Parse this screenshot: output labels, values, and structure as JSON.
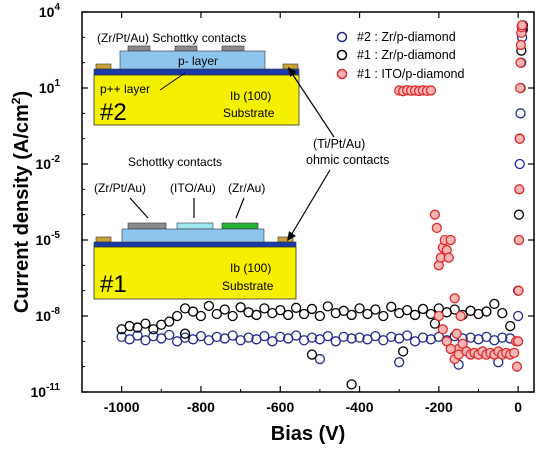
{
  "chart_data": {
    "type": "scatter",
    "title": "",
    "xlabel": "Bias (V)",
    "ylabel": "Current density (A/cm",
    "ylabel_sup": "2",
    "ylabel_close": ")",
    "xlim": [
      -1100,
      40
    ],
    "ylim": [
      1e-11,
      10000
    ],
    "yscale": "log",
    "x_ticks": [
      -1000,
      -800,
      -600,
      -400,
      -200,
      0
    ],
    "x_tick_labels": [
      "-1000",
      "-800",
      "-600",
      "-400",
      "-200",
      "0"
    ],
    "y_ticks": [
      1e-11,
      1e-08,
      1e-05,
      0.01,
      10,
      10000
    ],
    "y_tick_labels": [
      {
        "base": "10",
        "exp": "-11"
      },
      {
        "base": "10",
        "exp": "-8"
      },
      {
        "base": "10",
        "exp": "-5"
      },
      {
        "base": "10",
        "exp": "-2"
      },
      {
        "base": "10",
        "exp": "1"
      },
      {
        "base": "10",
        "exp": "4"
      }
    ],
    "grid": false,
    "legend_position": "top-right",
    "series": [
      {
        "name": "#2 : Zr/p-diamond",
        "marker": "open-circle",
        "color": "#1f2a8c",
        "points": [
          [
            -1000,
            1.5e-09
          ],
          [
            -980,
            1.2e-09
          ],
          [
            -960,
            1.7e-09
          ],
          [
            -940,
            1.1e-09
          ],
          [
            -920,
            1.6e-09
          ],
          [
            -900,
            1.3e-09
          ],
          [
            -880,
            1.8e-09
          ],
          [
            -860,
            1e-09
          ],
          [
            -840,
            1.4e-09
          ],
          [
            -820,
            1.2e-09
          ],
          [
            -800,
            1.6e-09
          ],
          [
            -780,
            1.1e-09
          ],
          [
            -760,
            1.5e-09
          ],
          [
            -740,
            1.3e-09
          ],
          [
            -720,
            1.7e-09
          ],
          [
            -700,
            1.1e-09
          ],
          [
            -680,
            1.4e-09
          ],
          [
            -660,
            1.2e-09
          ],
          [
            -640,
            1.6e-09
          ],
          [
            -620,
            1e-09
          ],
          [
            -600,
            1.5e-09
          ],
          [
            -580,
            1.3e-09
          ],
          [
            -560,
            1.7e-09
          ],
          [
            -540,
            1.1e-09
          ],
          [
            -520,
            1.4e-09
          ],
          [
            -500,
            1.2e-09
          ],
          [
            -480,
            1.6e-09
          ],
          [
            -460,
            1e-09
          ],
          [
            -440,
            1.5e-09
          ],
          [
            -420,
            1.3e-09
          ],
          [
            -400,
            1.4e-09
          ],
          [
            -380,
            1.2e-09
          ],
          [
            -360,
            1.6e-09
          ],
          [
            -340,
            1.1e-09
          ],
          [
            -320,
            1.5e-09
          ],
          [
            -300,
            1.3e-09
          ],
          [
            -280,
            1.7e-09
          ],
          [
            -260,
            1e-09
          ],
          [
            -240,
            1.4e-09
          ],
          [
            -220,
            1.2e-09
          ],
          [
            -200,
            1.5e-09
          ],
          [
            -180,
            1.1e-09
          ],
          [
            -160,
            1.6e-09
          ],
          [
            -140,
            1.3e-09
          ],
          [
            -120,
            1.4e-09
          ],
          [
            -100,
            1.2e-09
          ],
          [
            -80,
            1.5e-09
          ],
          [
            -60,
            1.1e-09
          ],
          [
            -40,
            1.4e-09
          ],
          [
            -20,
            1.3e-09
          ],
          [
            -500,
            2e-10
          ],
          [
            -300,
            1.5e-10
          ],
          [
            -150,
            1.2e-10
          ],
          [
            -50,
            1.5e-10
          ],
          [
            0,
            1e-08
          ],
          [
            2,
            1e-05
          ],
          [
            4,
            0.01
          ],
          [
            6,
            1
          ],
          [
            8,
            100
          ],
          [
            10,
            1000
          ],
          [
            12,
            2000
          ]
        ]
      },
      {
        "name": "#1 : Zr/p-diamond",
        "marker": "open-circle",
        "color": "#000000",
        "points": [
          [
            -1000,
            3e-09
          ],
          [
            -980,
            4e-09
          ],
          [
            -960,
            3.5e-09
          ],
          [
            -940,
            5e-09
          ],
          [
            -920,
            3e-09
          ],
          [
            -900,
            4.5e-09
          ],
          [
            -880,
            6e-09
          ],
          [
            -860,
            1e-08
          ],
          [
            -840,
            2e-08
          ],
          [
            -820,
            1.5e-08
          ],
          [
            -800,
            1e-08
          ],
          [
            -780,
            2.5e-08
          ],
          [
            -760,
            1.2e-08
          ],
          [
            -740,
            1.8e-08
          ],
          [
            -720,
            1e-08
          ],
          [
            -700,
            2.2e-08
          ],
          [
            -680,
            1.4e-08
          ],
          [
            -660,
            1.1e-08
          ],
          [
            -640,
            2e-08
          ],
          [
            -620,
            1.3e-08
          ],
          [
            -600,
            1.7e-08
          ],
          [
            -580,
            1.1e-08
          ],
          [
            -560,
            2.1e-08
          ],
          [
            -540,
            1.2e-08
          ],
          [
            -520,
            1.9e-08
          ],
          [
            -500,
            1e-08
          ],
          [
            -480,
            2.4e-08
          ],
          [
            -460,
            1.3e-08
          ],
          [
            -440,
            1.6e-08
          ],
          [
            -420,
            1.1e-08
          ],
          [
            -400,
            2e-08
          ],
          [
            -380,
            1.2e-08
          ],
          [
            -360,
            1.8e-08
          ],
          [
            -340,
            1e-08
          ],
          [
            -320,
            2.3e-08
          ],
          [
            -300,
            1.3e-08
          ],
          [
            -280,
            1.7e-08
          ],
          [
            -260,
            1.1e-08
          ],
          [
            -240,
            1.9e-08
          ],
          [
            -220,
            1.2e-08
          ],
          [
            -200,
            2e-08
          ],
          [
            -180,
            1.4e-08
          ],
          [
            -160,
            1.8e-08
          ],
          [
            -140,
            1.1e-08
          ],
          [
            -120,
            1.6e-08
          ],
          [
            -100,
            1.2e-08
          ],
          [
            -80,
            1.5e-08
          ],
          [
            -60,
            3e-08
          ],
          [
            -40,
            1.3e-08
          ],
          [
            -20,
            4e-09
          ],
          [
            -840,
            2e-09
          ],
          [
            -520,
            3e-10
          ],
          [
            -420,
            2e-11
          ],
          [
            -290,
            4e-10
          ],
          [
            -210,
            5e-09
          ],
          [
            0,
            1e-07
          ],
          [
            2,
            0.0001
          ],
          [
            4,
            0.1
          ],
          [
            6,
            10
          ],
          [
            8,
            300
          ],
          [
            10,
            2000
          ],
          [
            12,
            3000
          ]
        ]
      },
      {
        "name": "#1 : ITO/p-diamond",
        "marker": "open-circle",
        "color": "#e02a2a",
        "points": [
          [
            -300,
            8
          ],
          [
            -290,
            7.5
          ],
          [
            -280,
            8.2
          ],
          [
            -270,
            7.8
          ],
          [
            -260,
            8
          ],
          [
            -250,
            7.6
          ],
          [
            -240,
            8.1
          ],
          [
            -230,
            7.7
          ],
          [
            -220,
            8
          ],
          [
            -210,
            0.0001
          ],
          [
            -205,
            3e-05
          ],
          [
            -200,
            1e-06
          ],
          [
            -195,
            2e-06
          ],
          [
            -190,
            5e-06
          ],
          [
            -185,
            1e-05
          ],
          [
            -180,
            4e-06
          ],
          [
            -175,
            2e-06
          ],
          [
            -170,
            1e-05
          ],
          [
            -160,
            5e-08
          ],
          [
            -155,
            2e-09
          ],
          [
            -150,
            5e-10
          ],
          [
            -145,
            1e-08
          ],
          [
            -200,
            1e-08
          ],
          [
            -190,
            3e-09
          ],
          [
            -180,
            1e-09
          ],
          [
            -170,
            5e-10
          ],
          [
            -160,
            2e-10
          ],
          [
            -150,
            3e-10
          ],
          [
            -140,
            8e-10
          ],
          [
            -130,
            4e-10
          ],
          [
            -120,
            3e-10
          ],
          [
            -110,
            3.5e-10
          ],
          [
            -100,
            3e-10
          ],
          [
            -90,
            4e-10
          ],
          [
            -80,
            3e-10
          ],
          [
            -70,
            3.5e-10
          ],
          [
            -60,
            3e-10
          ],
          [
            -50,
            4e-10
          ],
          [
            -40,
            3e-10
          ],
          [
            -30,
            3.5e-10
          ],
          [
            -20,
            3e-10
          ],
          [
            -10,
            3.5e-10
          ],
          [
            -5,
            1e-09
          ],
          [
            -3,
            1e-10
          ],
          [
            0,
            1e-09
          ],
          [
            1,
            1e-07
          ],
          [
            2,
            1e-05
          ],
          [
            3,
            0.001
          ],
          [
            4,
            0.1
          ],
          [
            5,
            10
          ],
          [
            6,
            100
          ],
          [
            7,
            500
          ],
          [
            8,
            1500
          ],
          [
            9,
            2500
          ],
          [
            10,
            3000
          ]
        ]
      }
    ]
  },
  "inset2": {
    "contacts_label": "(Zr/Pt/Au) Schottky contacts",
    "p_layer_label": "p- layer",
    "ppp_layer_label": "p++ layer",
    "number_label": "#2",
    "substrate_line1": "Ib (100)",
    "substrate_line2": "Substrate"
  },
  "inset1": {
    "contacts_label": "Schottky contacts",
    "contact_a_label": "(Zr/Pt/Au)",
    "contact_b_label": "(ITO/Au)",
    "contact_c_label": "(Zr/Au)",
    "number_label": "#1",
    "substrate_line1": "Ib (100)",
    "substrate_line2": "Substrate"
  },
  "annotation": {
    "line1": "(Ti/Pt/Au)",
    "line2": "ohmic contacts"
  },
  "colors": {
    "substrate": "#f5f000",
    "p_layer": "#8ec5ee",
    "ppp_layer": "#1a3aa8",
    "contact_gray": "#8a8a8a",
    "contact_ito": "#9fe8f0",
    "contact_green": "#26b03a",
    "ohmic": "#c9a23a"
  }
}
